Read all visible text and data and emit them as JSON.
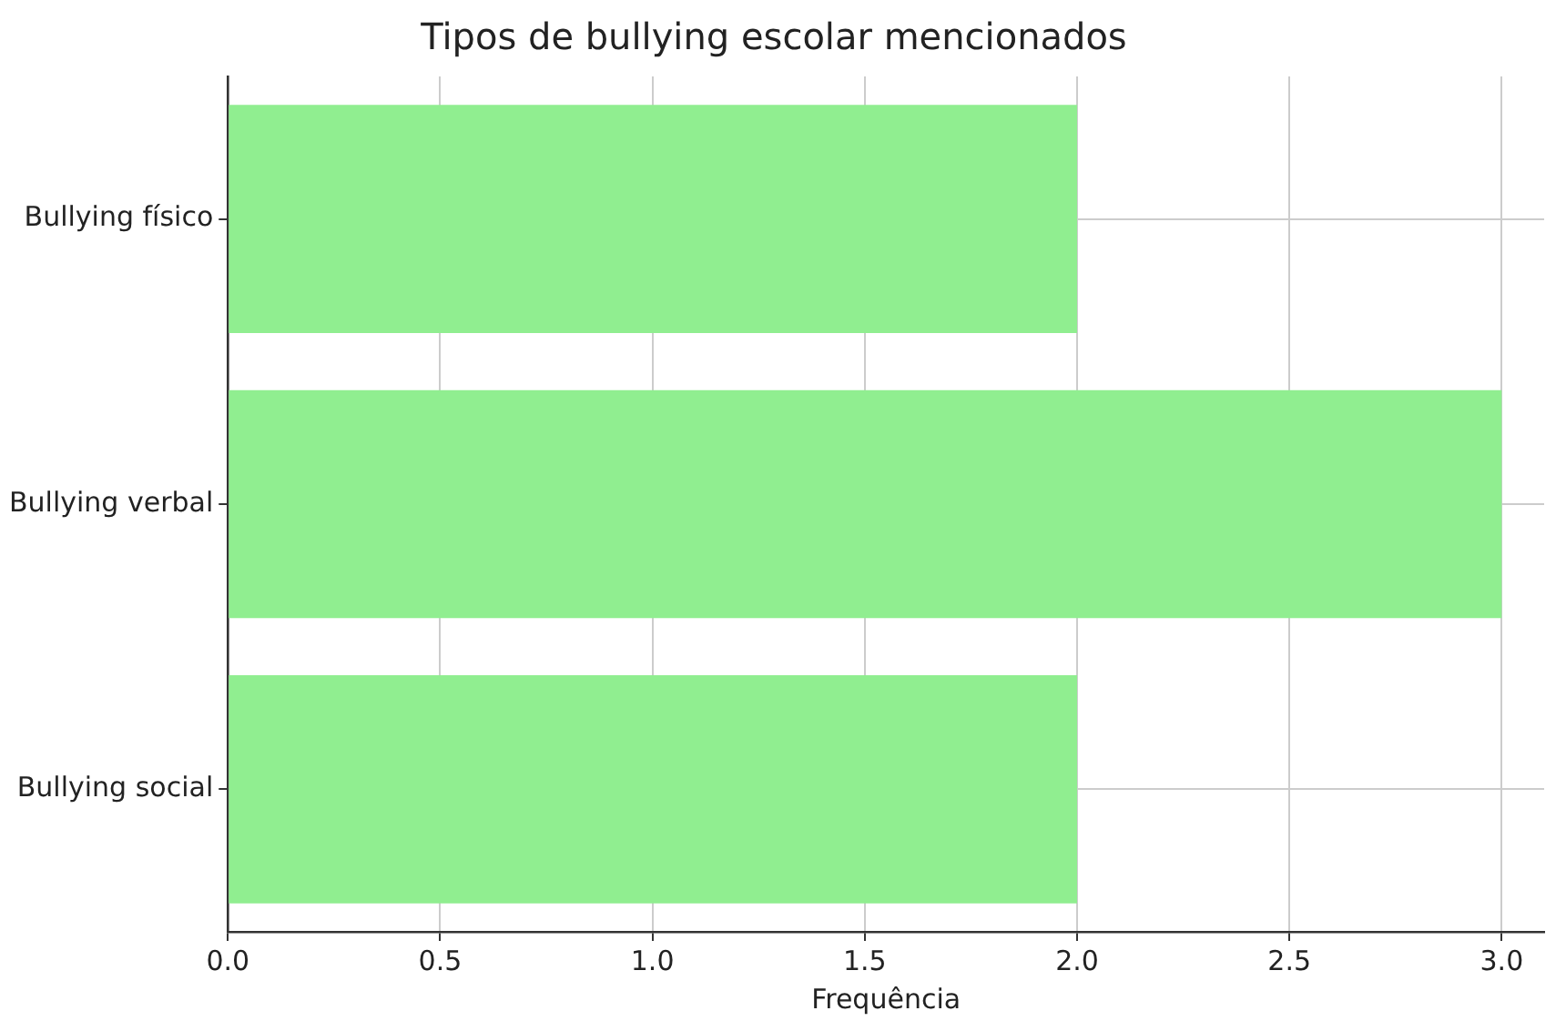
{
  "chart_data": {
    "type": "bar",
    "orientation": "horizontal",
    "title": "Tipos de bullying escolar mencionados",
    "xlabel": "Frequência",
    "categories": [
      "Bullying físico",
      "Bullying verbal",
      "Bullying social"
    ],
    "values": [
      2,
      3,
      2
    ],
    "color": "#90ee90",
    "xlim": [
      0,
      3.1
    ],
    "xticks": [
      {
        "value": 0,
        "label": "0.0"
      },
      {
        "value": 0.5,
        "label": "0.5"
      },
      {
        "value": 1,
        "label": "1.0"
      },
      {
        "value": 1.5,
        "label": "1.5"
      },
      {
        "value": 2,
        "label": "2.0"
      },
      {
        "value": 2.5,
        "label": "2.5"
      },
      {
        "value": 3,
        "label": "3.0"
      }
    ],
    "grid": true
  }
}
